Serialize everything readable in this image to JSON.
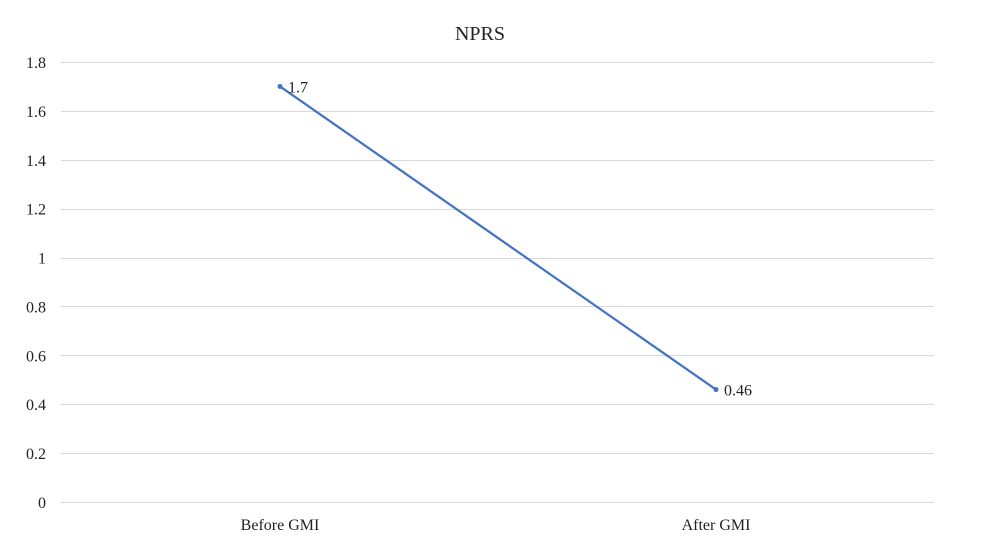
{
  "chart_data": {
    "type": "line",
    "title": "NPRS",
    "xlabel": "",
    "ylabel": "",
    "categories": [
      "Before GMI",
      "After GMI"
    ],
    "series": [
      {
        "values": [
          1.7,
          0.46
        ],
        "data_labels": [
          "1.7",
          "0.46"
        ],
        "color": "#4472c4"
      }
    ],
    "ylim": [
      0,
      1.8
    ],
    "yticks": [
      0,
      0.2,
      0.4,
      0.6,
      0.8,
      1,
      1.2,
      1.4,
      1.6,
      1.8
    ],
    "ytick_labels": [
      "0",
      "0.2",
      "0.4",
      "0.6",
      "0.8",
      "1",
      "1.2",
      "1.4",
      "1.6",
      "1.8"
    ],
    "grid": true,
    "legend": "none",
    "gridline_color": "#d9d9d9"
  }
}
